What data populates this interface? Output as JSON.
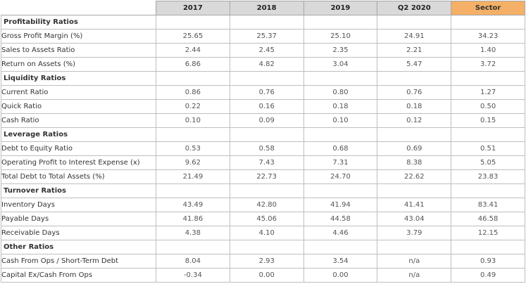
{
  "colors": {
    "header_bg": "#d9d9d9",
    "sector_header_bg": "#f4b066",
    "grid": "#bfbfbf"
  },
  "columns": [
    "2017",
    "2018",
    "2019",
    "Q2 2020",
    "Sector"
  ],
  "sections": [
    {
      "title": "Profitability Ratios",
      "rows": [
        {
          "label": "Gross Profit Margin (%)",
          "values": [
            "25.65",
            "25.37",
            "25.10",
            "24.91",
            "34.23"
          ]
        },
        {
          "label": "Sales to Assets Ratio",
          "values": [
            "2.44",
            "2.45",
            "2.35",
            "2.21",
            "1.40"
          ]
        },
        {
          "label": "Return on Assets (%)",
          "values": [
            "6.86",
            "4.82",
            "3.04",
            "5.47",
            "3.72"
          ]
        }
      ]
    },
    {
      "title": "Liquidity Ratios",
      "rows": [
        {
          "label": "Current Ratio",
          "values": [
            "0.86",
            "0.76",
            "0.80",
            "0.76",
            "1.27"
          ]
        },
        {
          "label": "Quick Ratio",
          "values": [
            "0.22",
            "0.16",
            "0.18",
            "0.18",
            "0.50"
          ]
        },
        {
          "label": "Cash Ratio",
          "values": [
            "0.10",
            "0.09",
            "0.10",
            "0.12",
            "0.15"
          ]
        }
      ]
    },
    {
      "title": "Leverage Ratios",
      "rows": [
        {
          "label": "Debt to Equity Ratio",
          "values": [
            "0.53",
            "0.58",
            "0.68",
            "0.69",
            "0.51"
          ]
        },
        {
          "label": "Operating Profit to Interest Expense (x)",
          "values": [
            "9.62",
            "7.43",
            "7.31",
            "8.38",
            "5.05"
          ]
        },
        {
          "label": "Total Debt to Total Assets (%)",
          "values": [
            "21.49",
            "22.73",
            "24.70",
            "22.62",
            "23.83"
          ]
        }
      ]
    },
    {
      "title": "Turnover Ratios",
      "rows": [
        {
          "label": "Inventory Days",
          "values": [
            "43.49",
            "42.80",
            "41.94",
            "41.41",
            "83.41"
          ]
        },
        {
          "label": "Payable Days",
          "values": [
            "41.86",
            "45.06",
            "44.58",
            "43.04",
            "46.58"
          ]
        },
        {
          "label": "Receivable Days",
          "values": [
            "4.38",
            "4.10",
            "4.46",
            "3.79",
            "12.15"
          ]
        }
      ]
    },
    {
      "title": "Other Ratios",
      "rows": [
        {
          "label": "Cash From Ops / Short-Term Debt",
          "values": [
            "8.04",
            "2.93",
            "3.54",
            "n/a",
            "0.93"
          ]
        },
        {
          "label": "Capital Ex/Cash From Ops",
          "values": [
            "-0.34",
            "0.00",
            "0.00",
            "n/a",
            "0.49"
          ]
        }
      ]
    }
  ]
}
